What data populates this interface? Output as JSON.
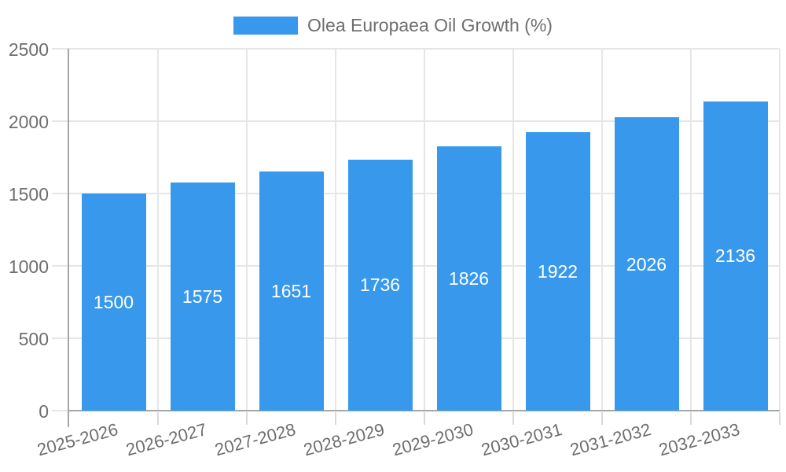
{
  "chart_data": {
    "type": "bar",
    "title": "Olea Europaea Oil Growth (%)",
    "legend": {
      "position": "top",
      "items": [
        {
          "label": "Olea Europaea Oil Growth (%)",
          "color": "#3899EC"
        }
      ]
    },
    "categories": [
      "2025-2026",
      "2026-2027",
      "2027-2028",
      "2028-2029",
      "2029-2030",
      "2030-2031",
      "2031-2032",
      "2032-2033"
    ],
    "series": [
      {
        "name": "Olea Europaea Oil Growth (%)",
        "color": "#3899EC",
        "values": [
          1500,
          1575,
          1651,
          1736,
          1826,
          1922,
          2026,
          2136
        ]
      }
    ],
    "value_labels": {
      "visible": true,
      "position": "inside-center-of-bar",
      "color": "#ffffff"
    },
    "xlabel": "",
    "ylabel": "",
    "ylim": [
      0,
      2500
    ],
    "yticks": [
      "0",
      "500",
      "1000",
      "1500",
      "2000",
      "2500"
    ],
    "x_tick_rotation_deg": -15,
    "grid": {
      "horizontal": true,
      "vertical": true
    }
  },
  "style": {
    "background": "#ffffff",
    "bar_color": "#3899EC",
    "axis_line_color": "#a6a6a6",
    "grid_line_color": "#e6e6e6",
    "outer_tick_color": "#d9d9d9",
    "text_color": "#6e6e6e",
    "value_label_color": "#ffffff"
  }
}
